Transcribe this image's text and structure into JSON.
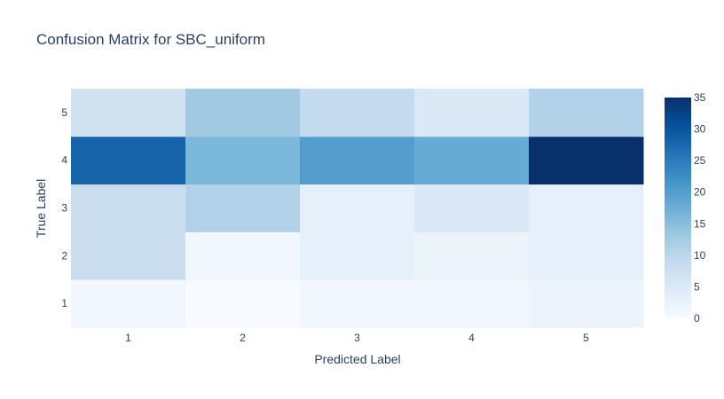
{
  "chart_data": {
    "type": "heatmap",
    "title": "Confusion Matrix for SBC_uniform",
    "xlabel": "Predicted Label",
    "ylabel": "True Label",
    "x_categories": [
      "1",
      "2",
      "3",
      "4",
      "5"
    ],
    "y_categories": [
      "1",
      "2",
      "3",
      "4",
      "5"
    ],
    "z": [
      [
        1,
        0,
        1,
        1,
        2
      ],
      [
        8,
        1,
        3,
        2,
        3
      ],
      [
        8,
        11,
        3,
        5,
        3
      ],
      [
        28,
        16,
        20,
        18,
        35
      ],
      [
        7,
        13,
        9,
        5,
        11
      ]
    ],
    "colorbar": {
      "min": 0,
      "max": 35,
      "ticks": [
        0,
        5,
        10,
        15,
        20,
        25,
        30,
        35
      ]
    },
    "colorscale": "Blues",
    "grid": false
  }
}
